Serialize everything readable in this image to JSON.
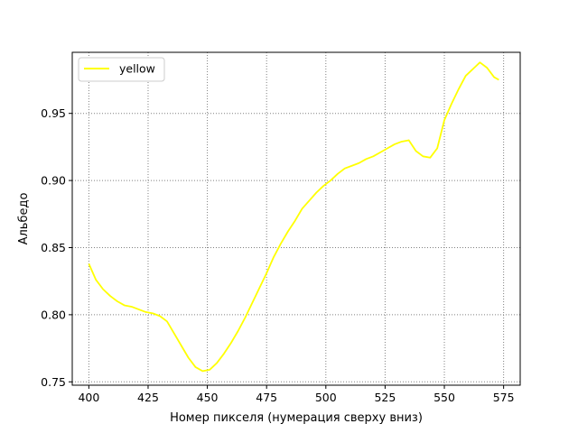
{
  "chart_data": {
    "type": "line",
    "title": "",
    "xlabel": "Номер пикселя (нумерация сверху вниз)",
    "ylabel": "Альбедо",
    "xlim": [
      393,
      582
    ],
    "ylim": [
      0.7475,
      0.9955
    ],
    "xticks": [
      400,
      425,
      450,
      475,
      500,
      525,
      550,
      575
    ],
    "yticks": [
      0.75,
      0.8,
      0.85,
      0.9,
      0.95
    ],
    "ytick_labels": [
      "0.75",
      "0.80",
      "0.85",
      "0.90",
      "0.95"
    ],
    "grid": true,
    "legend_position": "upper-left",
    "series": [
      {
        "name": "yellow",
        "color": "#ffff00",
        "x": [
          400,
          403,
          406,
          409,
          412,
          415,
          418,
          421,
          424,
          427,
          430,
          433,
          436,
          439,
          442,
          445,
          448,
          451,
          454,
          457,
          460,
          463,
          466,
          469,
          472,
          475,
          478,
          481,
          484,
          487,
          490,
          493,
          496,
          499,
          502,
          505,
          508,
          511,
          514,
          517,
          520,
          523,
          526,
          529,
          532,
          535,
          538,
          541,
          544,
          547,
          550,
          553,
          556,
          559,
          562,
          565,
          568,
          571,
          573
        ],
        "y": [
          0.838,
          0.826,
          0.819,
          0.814,
          0.81,
          0.807,
          0.806,
          0.804,
          0.802,
          0.801,
          0.799,
          0.795,
          0.786,
          0.777,
          0.768,
          0.761,
          0.758,
          0.759,
          0.764,
          0.771,
          0.779,
          0.788,
          0.798,
          0.809,
          0.82,
          0.831,
          0.843,
          0.853,
          0.862,
          0.87,
          0.879,
          0.885,
          0.891,
          0.896,
          0.9,
          0.905,
          0.909,
          0.911,
          0.913,
          0.916,
          0.918,
          0.921,
          0.924,
          0.927,
          0.929,
          0.93,
          0.922,
          0.918,
          0.917,
          0.924,
          0.945,
          0.957,
          0.968,
          0.978,
          0.983,
          0.988,
          0.984,
          0.977,
          0.975
        ]
      }
    ]
  }
}
